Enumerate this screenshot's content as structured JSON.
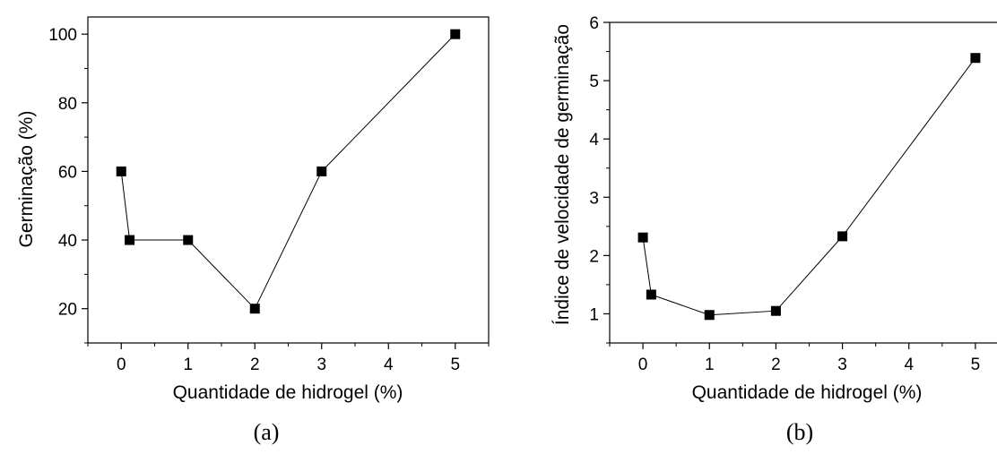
{
  "chart_data": [
    {
      "type": "line",
      "panel_label": "(a)",
      "xlabel": "Quantidade de hidrogel (%)",
      "ylabel": "Germinação (%)",
      "xlim": [
        -0.5,
        5.5
      ],
      "ylim": [
        10,
        105
      ],
      "xticks": [
        0,
        1,
        2,
        3,
        4,
        5
      ],
      "yticks": [
        20,
        40,
        60,
        80,
        100
      ],
      "grid": false,
      "marker": "square",
      "series": [
        {
          "x": [
            0,
            0.125,
            1,
            2,
            3,
            5
          ],
          "y": [
            60,
            40,
            40,
            20,
            60,
            100
          ]
        }
      ]
    },
    {
      "type": "line",
      "panel_label": "(b)",
      "xlabel": "Quantidade de hidrogel (%)",
      "ylabel": "Índice de velocidade de germinação",
      "xlim": [
        -0.5,
        5.5
      ],
      "ylim": [
        0.5,
        6
      ],
      "xticks": [
        0,
        1,
        2,
        3,
        4,
        5
      ],
      "yticks": [
        1,
        2,
        3,
        4,
        5,
        6
      ],
      "grid": false,
      "marker": "square",
      "series": [
        {
          "x": [
            0,
            0.125,
            1,
            2,
            3,
            5
          ],
          "y": [
            2.31,
            1.33,
            0.98,
            1.05,
            2.33,
            5.39
          ]
        }
      ]
    }
  ]
}
